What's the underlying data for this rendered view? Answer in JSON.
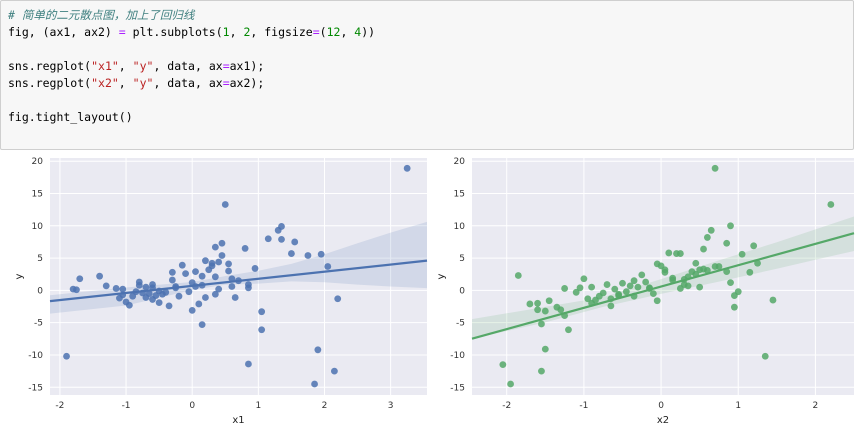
{
  "code_cell": {
    "lines": [
      [
        {
          "t": "# 简单的二元散点图，加上了回归线",
          "c": "comment"
        }
      ],
      [
        {
          "t": "fig, (ax1, ax2) "
        },
        {
          "t": "=",
          "c": "op"
        },
        {
          "t": " plt.subplots("
        },
        {
          "t": "1",
          "c": "num"
        },
        {
          "t": ", "
        },
        {
          "t": "2",
          "c": "num"
        },
        {
          "t": ", figsize"
        },
        {
          "t": "=",
          "c": "op"
        },
        {
          "t": "("
        },
        {
          "t": "12",
          "c": "num"
        },
        {
          "t": ", "
        },
        {
          "t": "4",
          "c": "num"
        },
        {
          "t": "))"
        }
      ],
      [],
      [
        {
          "t": "sns.regplot("
        },
        {
          "t": "\"x1\"",
          "c": "str"
        },
        {
          "t": ", "
        },
        {
          "t": "\"y\"",
          "c": "str"
        },
        {
          "t": ", data, ax"
        },
        {
          "t": "=",
          "c": "op"
        },
        {
          "t": "ax1);"
        }
      ],
      [
        {
          "t": "sns.regplot("
        },
        {
          "t": "\"x2\"",
          "c": "str"
        },
        {
          "t": ", "
        },
        {
          "t": "\"y\"",
          "c": "str"
        },
        {
          "t": ", data, ax"
        },
        {
          "t": "=",
          "c": "op"
        },
        {
          "t": "ax2);"
        }
      ],
      [],
      [
        {
          "t": "fig.tight_layout()"
        }
      ]
    ]
  },
  "chart_data": [
    {
      "type": "scatter",
      "xlabel": "x1",
      "ylabel": "y",
      "xlim": [
        -2.15,
        3.55
      ],
      "ylim": [
        -16.2,
        20.5
      ],
      "xticks": [
        -2,
        -1,
        0,
        1,
        2,
        3
      ],
      "yticks": [
        -15,
        -10,
        -5,
        0,
        5,
        10,
        15,
        20
      ],
      "point_color": "#4c72b0",
      "regression": {
        "intercept": 0.7,
        "slope": 1.1
      },
      "ci_band": [
        [
          -2.15,
          -0.75,
          -3.6
        ],
        [
          -1.0,
          0.45,
          -2.35
        ],
        [
          0.0,
          1.3,
          0.05
        ],
        [
          0.5,
          2.2,
          0.9
        ],
        [
          1.0,
          3.05,
          1.05
        ],
        [
          1.5,
          4.1,
          1.4
        ],
        [
          2.0,
          5.6,
          1.25
        ],
        [
          2.5,
          7.3,
          0.9
        ],
        [
          3.0,
          8.95,
          0.6
        ],
        [
          3.55,
          10.6,
          0.35
        ]
      ],
      "x": [
        3.25,
        -1.9,
        -1.75,
        -1.7,
        -1.8,
        -1.4,
        -1.3,
        -1.15,
        -1.1,
        -1.05,
        -1.0,
        -0.95,
        -0.9,
        -0.85,
        -0.8,
        -0.8,
        -0.75,
        -0.7,
        -0.7,
        -0.65,
        -0.6,
        -0.6,
        -0.55,
        -0.5,
        -0.5,
        -0.45,
        -0.4,
        -0.35,
        -0.3,
        -0.25,
        -0.2,
        -0.15,
        -0.1,
        0.0,
        0.0,
        0.05,
        0.1,
        0.15,
        0.2,
        0.25,
        0.3,
        0.35,
        0.35,
        0.4,
        0.45,
        0.5,
        0.55,
        0.6,
        0.65,
        0.7,
        0.8,
        0.85,
        0.85,
        0.95,
        1.05,
        1.05,
        1.15,
        1.3,
        1.35,
        1.35,
        1.5,
        1.55,
        1.75,
        1.85,
        1.9,
        1.95,
        2.05,
        2.15,
        2.2,
        0.3,
        0.4,
        0.45,
        0.2,
        0.55,
        0.85,
        -0.3,
        0.05,
        -0.05,
        0.15,
        -0.6,
        -1.05,
        0.6,
        0.35,
        0.15,
        -0.25
      ],
      "y": [
        18.9,
        -10.2,
        0.1,
        1.8,
        0.2,
        2.2,
        0.7,
        0.3,
        -1.2,
        0.2,
        -1.8,
        -2.3,
        -0.9,
        -0.2,
        0.8,
        1.3,
        -0.4,
        0.5,
        -1.1,
        -0.5,
        -1.4,
        0.9,
        -0.8,
        -0.1,
        -1.9,
        -0.6,
        -0.3,
        -2.4,
        2.8,
        0.4,
        -0.9,
        3.9,
        2.6,
        -3.1,
        1.2,
        0.6,
        -2.1,
        0.8,
        4.6,
        3.2,
        3.8,
        2.1,
        -0.6,
        0.2,
        7.3,
        13.3,
        3.0,
        0.6,
        -1.1,
        1.5,
        6.5,
        -11.4,
        0.4,
        3.4,
        -3.3,
        -6.1,
        8.0,
        9.3,
        7.9,
        9.9,
        5.7,
        7.5,
        5.4,
        -14.5,
        -9.2,
        5.6,
        3.7,
        -12.5,
        -1.3,
        4.2,
        4.4,
        5.4,
        -1.1,
        4.1,
        0.9,
        1.6,
        2.9,
        -0.2,
        -5.3,
        0.4,
        -0.7,
        1.8,
        6.7,
        2.2,
        0.6
      ]
    },
    {
      "type": "scatter",
      "xlabel": "x2",
      "ylabel": "y",
      "xlim": [
        -2.45,
        2.5
      ],
      "ylim": [
        -16.2,
        20.5
      ],
      "xticks": [
        -2,
        -1,
        0,
        1,
        2
      ],
      "yticks": [
        -15,
        -10,
        -5,
        0,
        5,
        10,
        15,
        20
      ],
      "point_color": "#55a868",
      "regression": {
        "intercept": 0.6,
        "slope": 3.3
      },
      "ci_band": [
        [
          -2.45,
          -4.45,
          -7.5
        ],
        [
          -1.5,
          -2.55,
          -4.95
        ],
        [
          -0.75,
          -1.05,
          -2.55
        ],
        [
          0.0,
          1.75,
          -0.55
        ],
        [
          0.75,
          4.65,
          1.35
        ],
        [
          1.5,
          7.45,
          3.35
        ],
        [
          2.0,
          9.45,
          4.75
        ],
        [
          2.5,
          11.45,
          6.1
        ]
      ],
      "x": [
        -2.05,
        -1.95,
        -1.85,
        -1.7,
        -1.6,
        -1.55,
        -1.5,
        -1.45,
        -1.35,
        -1.3,
        -1.25,
        -1.2,
        -1.1,
        -1.05,
        -1.0,
        -0.95,
        -0.9,
        -0.85,
        -0.8,
        -0.75,
        -0.7,
        -0.65,
        -0.6,
        -0.55,
        -0.5,
        -0.45,
        -0.4,
        -0.35,
        -0.3,
        -0.25,
        -0.2,
        -0.15,
        -0.1,
        -0.05,
        0.0,
        0.05,
        0.1,
        0.15,
        0.2,
        0.25,
        0.3,
        0.35,
        0.4,
        0.45,
        0.5,
        0.55,
        0.6,
        0.65,
        0.7,
        0.75,
        0.85,
        0.9,
        0.95,
        1.0,
        1.05,
        1.2,
        1.25,
        1.35,
        1.45,
        2.2,
        0.7,
        0.45,
        0.55,
        0.85,
        0.95,
        -1.5,
        -1.55,
        -1.6,
        -1.25,
        -0.55,
        -0.15,
        0.25,
        0.05,
        -0.35,
        0.35,
        0.5,
        0.9,
        1.15,
        -0.9,
        -0.65,
        0.15,
        0.6,
        -0.05,
        0.3
      ],
      "y": [
        -11.5,
        -14.5,
        2.3,
        -2.1,
        -2.0,
        -12.5,
        -9.1,
        -1.6,
        -2.6,
        -3.0,
        0.3,
        -6.1,
        -0.3,
        0.4,
        1.8,
        -1.3,
        0.5,
        -1.5,
        -0.9,
        -0.4,
        0.9,
        -1.3,
        0.2,
        -0.6,
        1.1,
        -0.2,
        0.7,
        -0.9,
        0.5,
        2.4,
        1.3,
        0.3,
        -0.5,
        4.1,
        3.8,
        3.2,
        5.8,
        1.6,
        5.7,
        5.7,
        1.7,
        0.7,
        2.9,
        4.2,
        3.2,
        6.4,
        8.2,
        9.3,
        18.9,
        3.7,
        7.3,
        10.0,
        -2.6,
        -0.2,
        5.6,
        6.9,
        4.2,
        -10.2,
        -1.5,
        13.3,
        3.7,
        2.5,
        3.3,
        2.9,
        -0.8,
        -3.2,
        -5.2,
        -3.0,
        -3.9,
        -0.8,
        0.4,
        0.3,
        2.8,
        1.5,
        2.1,
        0.5,
        1.2,
        2.8,
        -2.0,
        -2.4,
        1.9,
        3.1,
        -1.6,
        0.9
      ]
    }
  ]
}
